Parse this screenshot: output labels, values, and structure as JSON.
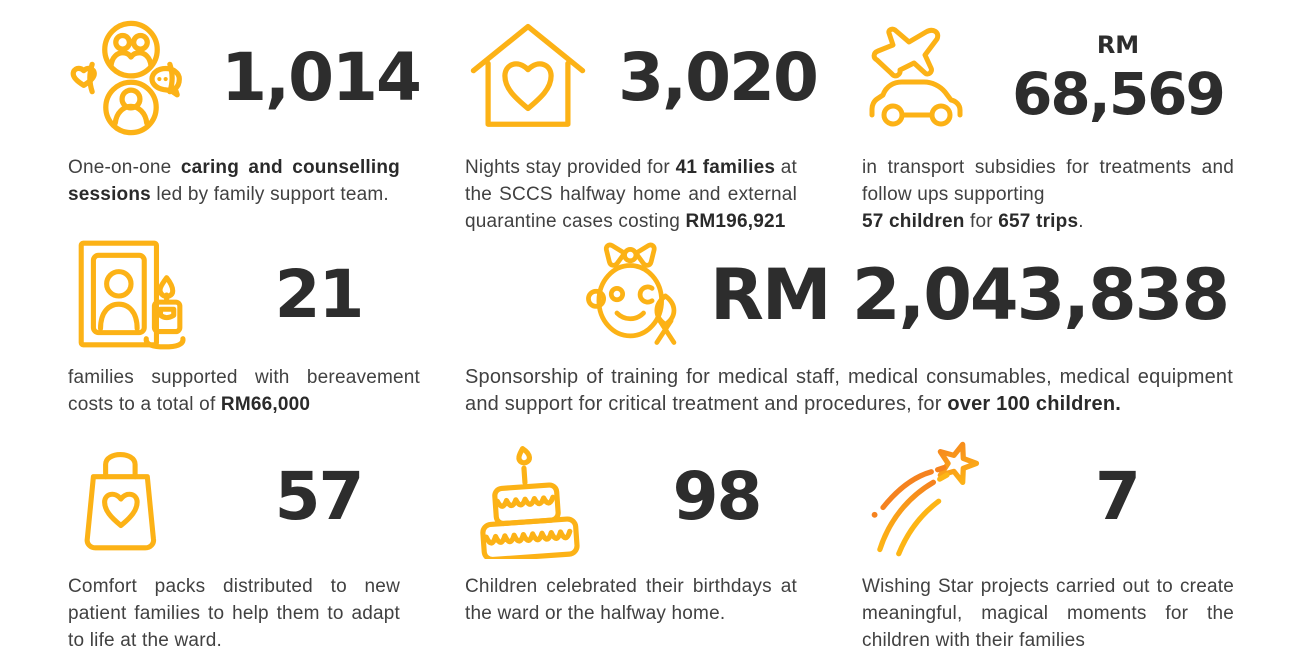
{
  "colors": {
    "gold": "#FCB216",
    "orange": "#F5821F",
    "number": "#2D2D2D",
    "text": "#414141",
    "textbold": "#2A2A2A"
  },
  "blocks": [
    {
      "name": "counselling",
      "icon": "family-support-icon",
      "number": "1,014",
      "segments": [
        {
          "t": "One-on-one "
        },
        {
          "t": "caring and counselling sessions",
          "b": true
        },
        {
          "t": " led by family support team."
        }
      ]
    },
    {
      "name": "halfway-home",
      "icon": "house-heart-icon",
      "number": "3,020",
      "segments": [
        {
          "t": "Nights stay provided for "
        },
        {
          "t": "41 families",
          "b": true
        },
        {
          "t": " at the SCCS halfway home and external quarantine cases costing "
        },
        {
          "t": "RM196,921",
          "b": true
        }
      ]
    },
    {
      "name": "transport",
      "icon": "plane-car-icon",
      "prefix": "RM",
      "number": "68,569",
      "segments": [
        {
          "t": "in transport subsidies for treatments and follow ups supporting\n"
        },
        {
          "t": "57 children",
          "b": true
        },
        {
          "t": " for "
        },
        {
          "t": "657 trips",
          "b": true
        },
        {
          "t": "."
        }
      ]
    },
    {
      "name": "bereavement",
      "icon": "memorial-photo-candle-icon",
      "number": "21",
      "segments": [
        {
          "t": "families supported with bereavement costs to a total of "
        },
        {
          "t": "RM66,000",
          "b": true
        }
      ]
    },
    {
      "name": "medical",
      "icon": "child-ribbon-icon",
      "number": "RM 2,043,838",
      "segments": [
        {
          "t": "Sponsorship of training for medical staff, medical consumables, medical equipment and support for critical treatment and procedures, for "
        },
        {
          "t": "over 100 children.",
          "b": true
        }
      ]
    },
    {
      "name": "comfort-packs",
      "icon": "gift-bag-heart-icon",
      "number": "57",
      "segments": [
        {
          "t": "Comfort packs distributed to new patient families to help them to adapt to life at the ward."
        }
      ]
    },
    {
      "name": "birthdays",
      "icon": "birthday-cake-icon",
      "number": "98",
      "segments": [
        {
          "t": "Children celebrated their birthdays at the ward or the halfway home."
        }
      ]
    },
    {
      "name": "wishing-star",
      "icon": "shooting-star-icon",
      "number": "7",
      "segments": [
        {
          "t": "Wishing Star projects carried out to create meaningful, magical moments for the children with their families"
        }
      ]
    }
  ]
}
